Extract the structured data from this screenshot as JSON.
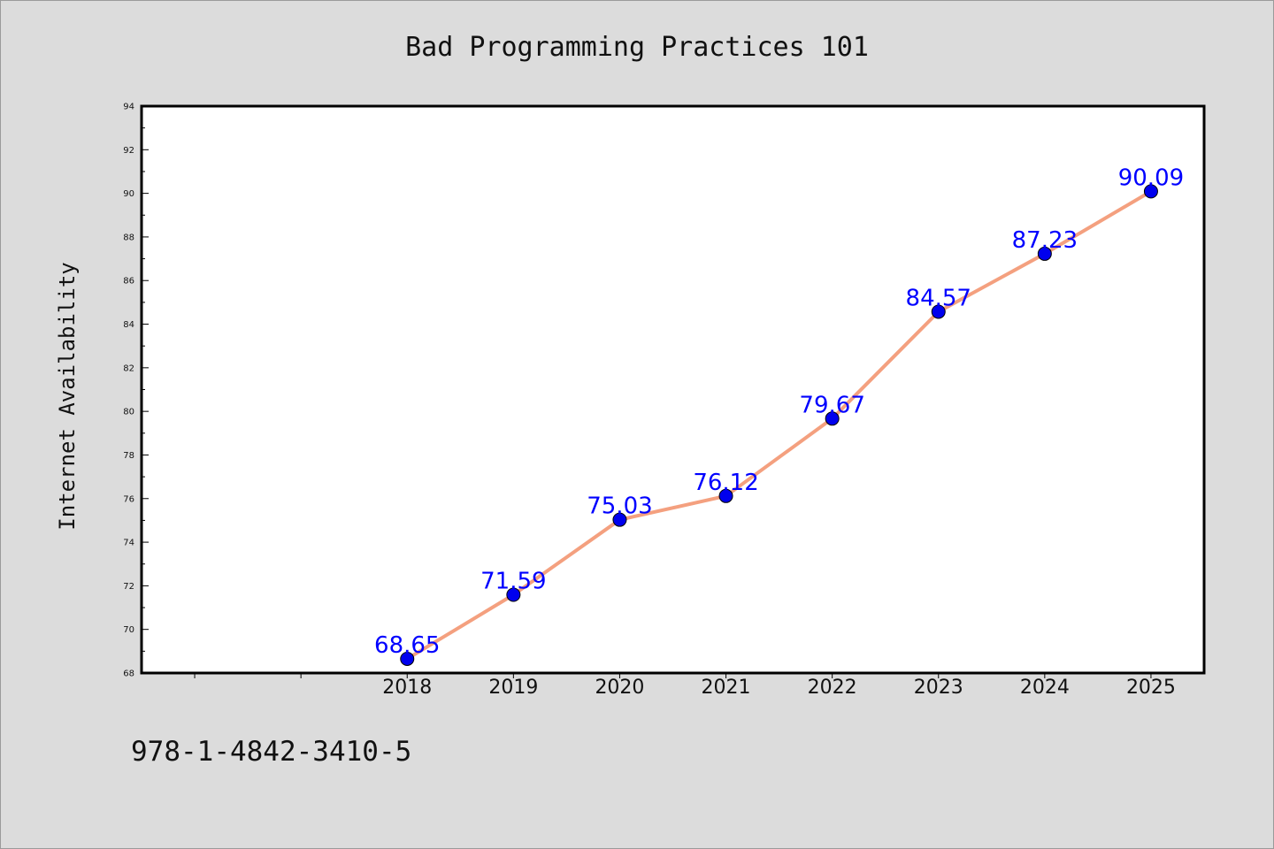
{
  "colors": {
    "background": "#dcdcdc",
    "plot_background": "#ffffff",
    "line": "#f4a07f",
    "marker": "#0000ee",
    "data_label": "#0000ff"
  },
  "footer": {
    "isbn": "978-1-4842-3410-5"
  },
  "chart_data": {
    "type": "line",
    "title": "Bad Programming Practices 101",
    "xlabel": "",
    "ylabel": "Internet Availability",
    "x": [
      "2018",
      "2019",
      "2020",
      "2021",
      "2022",
      "2023",
      "2024",
      "2025"
    ],
    "x_range": [
      2015.5,
      2025.5
    ],
    "values": [
      68.65,
      71.59,
      75.03,
      76.12,
      79.67,
      84.57,
      87.23,
      90.09
    ],
    "data_labels": [
      "68.65",
      "71.59",
      "75.03",
      "76.12",
      "79.67",
      "84.57",
      "87.23",
      "90.09"
    ],
    "ylim": [
      68,
      94
    ],
    "yticks": [
      "68",
      "70",
      "72",
      "74",
      "76",
      "78",
      "80",
      "82",
      "84",
      "86",
      "88",
      "90",
      "92",
      "94"
    ],
    "grid": false,
    "legend": "none"
  }
}
